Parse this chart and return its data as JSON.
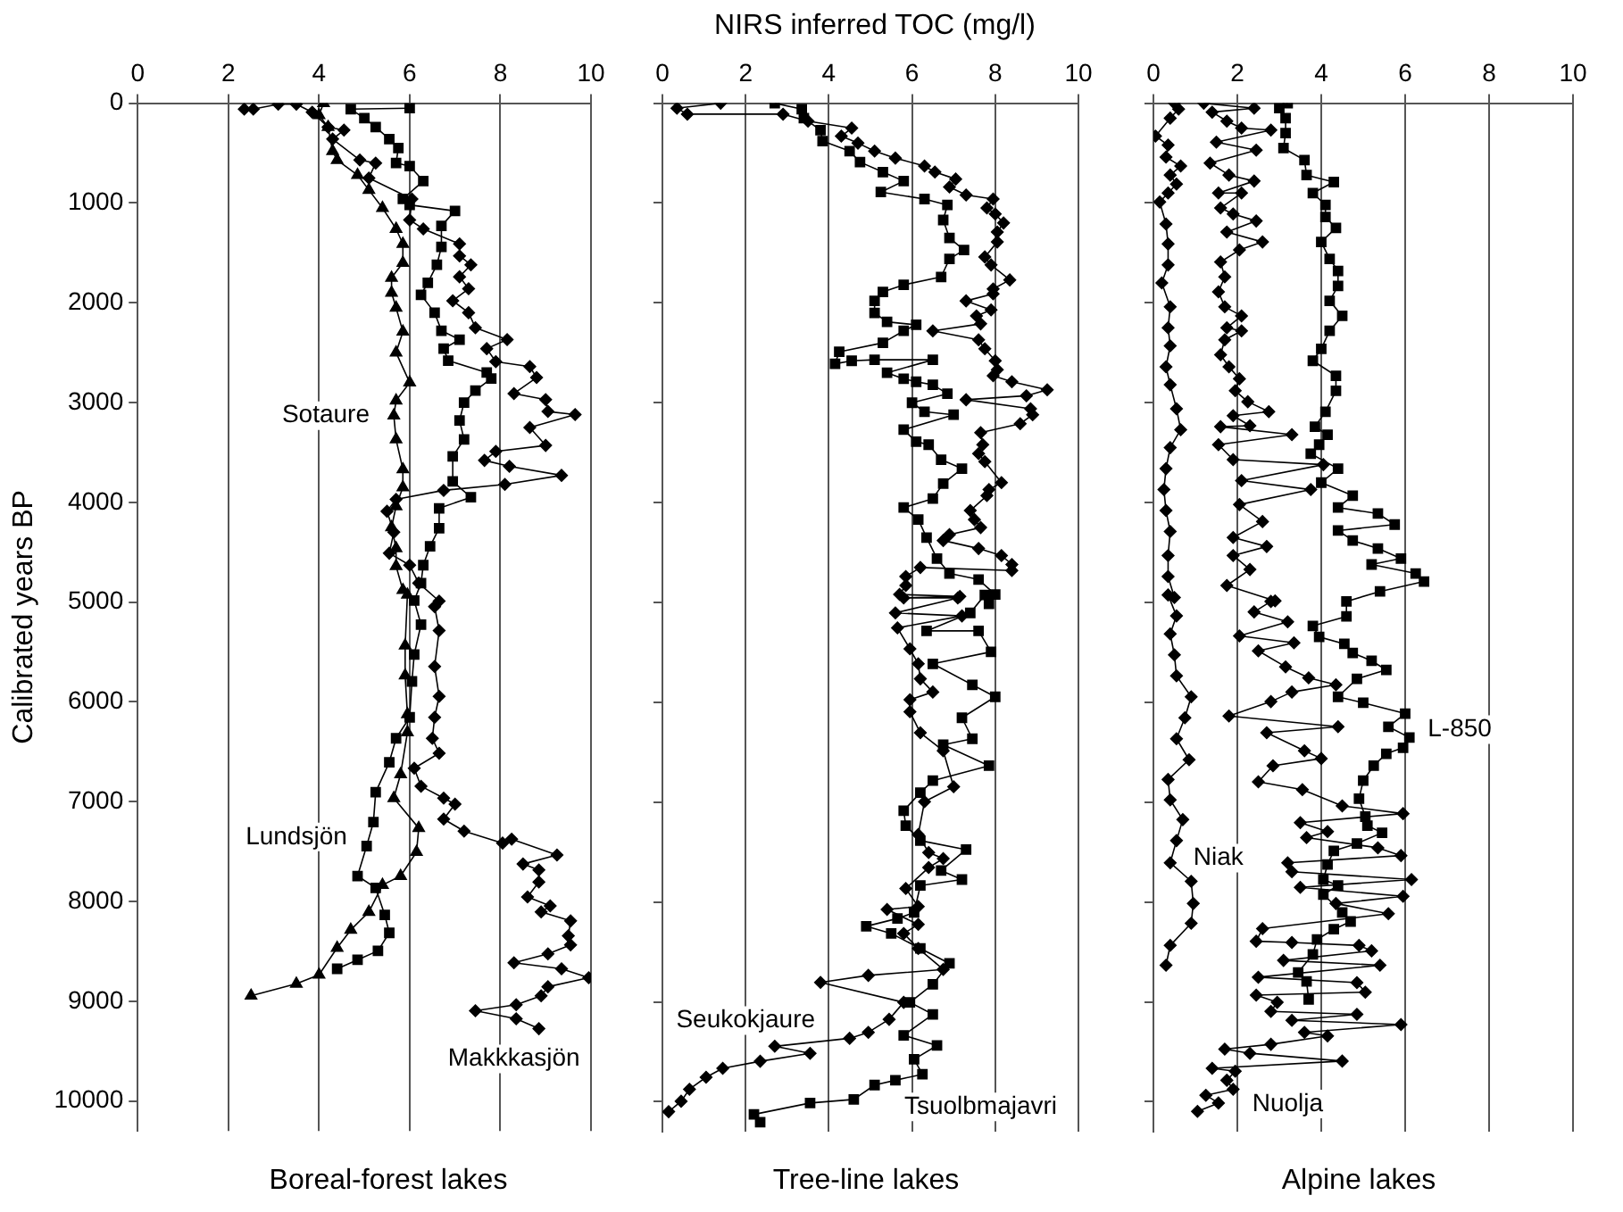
{
  "chart_data": [
    {
      "type": "line",
      "ylabel": "Calibrated years BP",
      "xlabel": "Boreal-forest lakes",
      "xlim": [
        0,
        10
      ],
      "xticks": [
        0,
        2,
        4,
        6,
        8,
        10
      ],
      "ylim": [
        10300,
        0
      ],
      "yticks": [
        0,
        1000,
        2000,
        3000,
        4000,
        5000,
        6000,
        7000,
        8000,
        9000,
        10000
      ],
      "grid": "x",
      "series": [
        {
          "name": "Sotaure",
          "color": "#000000",
          "marker": "triangle",
          "x": [
            4.1,
            4.0,
            4.2,
            4.3,
            4.4,
            4.85,
            5.1,
            5.4,
            5.7,
            5.85,
            5.85,
            5.6,
            5.6,
            5.7,
            5.85,
            5.7,
            6.0,
            5.7,
            5.65,
            5.7,
            5.85,
            5.85,
            5.7,
            5.6,
            5.7,
            5.7,
            5.85,
            5.95,
            5.9,
            5.9,
            5.95,
            5.95,
            5.8,
            5.65,
            6.2,
            6.15,
            5.8,
            5.4,
            5.1,
            4.7,
            4.4,
            4.0,
            3.5,
            2.5
          ],
          "values": [
            0,
            120,
            240,
            480,
            570,
            720,
            870,
            1050,
            1260,
            1410,
            1600,
            1750,
            1900,
            2050,
            2290,
            2500,
            2800,
            2980,
            3130,
            3370,
            3670,
            3850,
            4040,
            4250,
            4460,
            4640,
            4880,
            4925,
            5435,
            5735,
            6125,
            6305,
            6725,
            6965,
            7265,
            7505,
            7745,
            7835,
            8105,
            8285,
            8465,
            8735,
            8825,
            8945
          ]
        },
        {
          "name": "Lundsjön",
          "color": "#000000",
          "marker": "square",
          "x": [
            6.0,
            4.7,
            5.0,
            5.25,
            5.55,
            5.75,
            5.7,
            6.0,
            6.3,
            5.85,
            6.0,
            7.0,
            6.7,
            6.7,
            6.6,
            6.4,
            6.25,
            6.55,
            6.7,
            7.1,
            6.75,
            6.85,
            7.7,
            7.8,
            7.45,
            7.2,
            7.1,
            7.2,
            6.95,
            6.95,
            7.35,
            6.65,
            6.65,
            6.45,
            6.3,
            6.25,
            6.1,
            6.25,
            6.1,
            6.05,
            6.0,
            5.7,
            5.55,
            5.25,
            5.2,
            5.05,
            4.85,
            5.25,
            5.45,
            5.55,
            5.3,
            4.85,
            4.4
          ],
          "values": [
            50,
            60,
            150,
            240,
            360,
            450,
            600,
            630,
            780,
            960,
            1020,
            1080,
            1230,
            1440,
            1620,
            1800,
            1920,
            2100,
            2280,
            2370,
            2460,
            2580,
            2700,
            2760,
            2880,
            3000,
            3180,
            3370,
            3540,
            3790,
            3950,
            4060,
            4260,
            4440,
            4630,
            4810,
            4985,
            5225,
            5525,
            5795,
            6155,
            6365,
            6605,
            6905,
            7205,
            7445,
            7745,
            7865,
            8135,
            8315,
            8495,
            8585,
            8675
          ]
        },
        {
          "name": "Makkkasjön",
          "color": "#000000",
          "marker": "diamond",
          "x": [
            2.35,
            2.55,
            3.1,
            3.5,
            3.85,
            4.2,
            4.55,
            4.3,
            4.9,
            5.25,
            5.1,
            6.05,
            6.0,
            6.3,
            7.1,
            7.1,
            7.35,
            7.1,
            7.3,
            6.95,
            7.3,
            7.45,
            8.15,
            7.7,
            7.9,
            8.65,
            8.8,
            8.3,
            9.0,
            9.05,
            9.65,
            8.65,
            9.0,
            7.9,
            7.65,
            8.2,
            9.35,
            8.1,
            6.75,
            5.7,
            5.5,
            5.65,
            5.55,
            6.0,
            6.2,
            6.65,
            6.55,
            6.65,
            6.55,
            6.65,
            6.55,
            6.5,
            6.65,
            6.1,
            6.25,
            6.75,
            7.0,
            6.75,
            7.2,
            8.05,
            8.25,
            9.25,
            8.5,
            8.85,
            8.85,
            8.6,
            9.1,
            8.9,
            9.55,
            9.5,
            9.55,
            9.05,
            8.3,
            9.35,
            9.95,
            9.05,
            8.9,
            8.35,
            7.45,
            8.35,
            8.85
          ],
          "values": [
            60,
            60,
            10,
            10,
            90,
            240,
            270,
            360,
            570,
            600,
            750,
            960,
            1170,
            1260,
            1410,
            1530,
            1620,
            1740,
            1860,
            1980,
            2100,
            2250,
            2370,
            2460,
            2590,
            2640,
            2750,
            2910,
            2970,
            3090,
            3120,
            3250,
            3430,
            3490,
            3580,
            3640,
            3730,
            3820,
            3880,
            3970,
            4090,
            4300,
            4510,
            4630,
            4810,
            4990,
            5045,
            5285,
            5645,
            5945,
            6155,
            6365,
            6515,
            6665,
            6845,
            6965,
            7025,
            7175,
            7295,
            7415,
            7375,
            7535,
            7625,
            7685,
            7805,
            7955,
            8045,
            8105,
            8195,
            8345,
            8435,
            8525,
            8615,
            8675,
            8765,
            8855,
            8945,
            9035,
            9095,
            9175,
            9275
          ]
        }
      ]
    },
    {
      "type": "line",
      "title": "NIRS inferred TOC (mg/l)",
      "xlabel": "Tree-line lakes",
      "xlim": [
        0,
        10
      ],
      "xticks": [
        0,
        2,
        4,
        6,
        8,
        10
      ],
      "ylim": [
        10300,
        0
      ],
      "yticks": [
        0,
        1000,
        2000,
        3000,
        4000,
        5000,
        6000,
        7000,
        8000,
        9000,
        10000
      ],
      "grid": "x",
      "tick_labels": "x",
      "series": [
        {
          "name": "Seukokjaure",
          "color": "#000000",
          "marker": "diamond",
          "x": [
            1.4,
            0.35,
            0.6,
            2.9,
            3.5,
            4.55,
            4.3,
            4.7,
            5.1,
            5.6,
            6.3,
            6.55,
            7.05,
            6.9,
            7.3,
            7.95,
            7.8,
            8.0,
            8.2,
            8.05,
            8.05,
            7.75,
            7.9,
            8.35,
            7.95,
            7.95,
            7.3,
            7.9,
            7.55,
            7.65,
            6.5,
            7.6,
            7.75,
            8.0,
            8.05,
            7.95,
            8.4,
            9.25,
            8.75,
            7.3,
            8.85,
            8.9,
            8.6,
            7.65,
            7.7,
            7.6,
            7.75,
            8.15,
            7.85,
            7.8,
            7.4,
            7.5,
            7.65,
            6.9,
            6.75,
            7.6,
            8.15,
            8.4,
            8.4,
            6.2,
            5.85,
            5.85,
            5.7,
            7.15,
            5.8,
            7.1,
            5.6,
            7.2,
            5.65,
            5.95,
            6.15,
            6.2,
            6.5,
            5.95,
            5.95,
            6.2,
            6.75,
            7.0,
            6.3,
            6.15,
            6.4,
            6.75,
            6.4,
            5.85,
            6.15,
            5.4,
            6.15,
            5.8,
            6.15,
            6.75,
            4.95,
            3.8,
            5.8,
            5.45,
            4.95,
            4.5,
            2.7,
            3.55,
            2.35,
            1.45,
            1.05,
            0.65,
            0.45,
            0.15
          ],
          "values": [
            0,
            50,
            110,
            110,
            180,
            250,
            330,
            400,
            480,
            550,
            630,
            690,
            760,
            840,
            920,
            960,
            1050,
            1110,
            1200,
            1290,
            1390,
            1540,
            1620,
            1770,
            1860,
            1910,
            1980,
            2070,
            2130,
            2210,
            2280,
            2370,
            2460,
            2580,
            2670,
            2730,
            2790,
            2870,
            2930,
            2970,
            3060,
            3120,
            3210,
            3300,
            3420,
            3510,
            3590,
            3800,
            3870,
            3930,
            4080,
            4170,
            4250,
            4320,
            4380,
            4460,
            4530,
            4620,
            4680,
            4650,
            4740,
            4830,
            4920,
            4940,
            4955,
            4955,
            5105,
            5135,
            5255,
            5465,
            5615,
            5765,
            5897,
            5975,
            6095,
            6305,
            6485,
            6845,
            6995,
            7325,
            7505,
            7565,
            7655,
            7865,
            8045,
            8075,
            8225,
            8315,
            8465,
            8675,
            8735,
            8805,
            9005,
            9175,
            9305,
            9365,
            9445,
            9515,
            9595,
            9665,
            9755,
            9875,
            9995,
            10100
          ]
        },
        {
          "name": "Tsuolbmajavri",
          "color": "#000000",
          "marker": "square",
          "x": [
            2.7,
            3.35,
            3.4,
            3.8,
            3.85,
            4.5,
            4.75,
            5.3,
            5.8,
            5.25,
            6.3,
            6.85,
            6.75,
            6.9,
            7.25,
            6.9,
            6.7,
            5.8,
            5.3,
            5.1,
            5.1,
            5.4,
            6.1,
            5.8,
            5.3,
            4.25,
            4.15,
            4.55,
            5.1,
            6.5,
            5.4,
            5.8,
            6.1,
            6.5,
            6.85,
            6.0,
            6.3,
            7.0,
            5.8,
            6.1,
            6.4,
            6.7,
            7.2,
            6.75,
            6.5,
            5.8,
            6.15,
            6.35,
            6.6,
            6.9,
            7.6,
            8.0,
            7.85,
            7.75,
            7.4,
            6.35,
            7.6,
            7.9,
            6.5,
            7.45,
            8.0,
            7.2,
            7.45,
            6.75,
            7.85,
            6.5,
            6.2,
            5.8,
            5.85,
            6.2,
            7.3,
            6.7,
            7.2,
            6.2,
            6.05,
            5.65,
            4.9,
            5.5,
            6.2,
            6.9,
            6.5,
            5.95,
            6.5,
            5.8,
            6.6,
            6.05,
            6.25,
            5.6,
            5.1,
            4.6,
            3.55,
            2.2,
            2.35
          ],
          "values": [
            0,
            60,
            150,
            270,
            380,
            480,
            590,
            690,
            780,
            890,
            960,
            1020,
            1170,
            1350,
            1470,
            1560,
            1740,
            1820,
            1890,
            1980,
            2100,
            2190,
            2220,
            2280,
            2400,
            2490,
            2610,
            2580,
            2570,
            2570,
            2700,
            2760,
            2790,
            2820,
            2910,
            3000,
            3090,
            3120,
            3270,
            3390,
            3420,
            3570,
            3660,
            3810,
            3960,
            4050,
            4170,
            4350,
            4560,
            4710,
            4770,
            4920,
            5015,
            4925,
            5105,
            5285,
            5285,
            5495,
            5615,
            5825,
            5945,
            6155,
            6365,
            6425,
            6635,
            6785,
            6905,
            7085,
            7235,
            7385,
            7475,
            7685,
            7775,
            7835,
            8105,
            8165,
            8243,
            8315,
            8465,
            8615,
            8825,
            9005,
            9125,
            9335,
            9437,
            9575,
            9725,
            9785,
            9833,
            9977,
            10013,
            10127,
            10205
          ]
        }
      ]
    },
    {
      "type": "line",
      "xlabel": "Alpine lakes",
      "xlim": [
        0,
        10
      ],
      "xticks": [
        0,
        2,
        4,
        6,
        8,
        10
      ],
      "ylim": [
        10300,
        0
      ],
      "yticks": [
        0,
        1000,
        2000,
        3000,
        4000,
        5000,
        6000,
        7000,
        8000,
        9000,
        10000
      ],
      "grid": "x",
      "tick_labels": "x",
      "series": [
        {
          "name": "Niak",
          "color": "#000000",
          "marker": "diamond",
          "x": [
            0.5,
            0.6,
            0.4,
            0.05,
            0.35,
            0.3,
            0.65,
            0.4,
            0.55,
            0.35,
            0.15,
            0.3,
            0.35,
            0.35,
            0.2,
            0.4,
            0.35,
            0.4,
            0.3,
            0.4,
            0.55,
            0.65,
            0.4,
            0.3,
            0.25,
            0.3,
            0.4,
            0.35,
            0.35,
            0.5,
            0.35,
            0.55,
            0.4,
            0.5,
            0.55,
            0.9,
            0.75,
            0.55,
            0.85,
            0.35,
            0.4,
            0.7,
            0.55,
            0.4,
            0.9,
            0.95,
            0.9,
            0.4,
            0.3
          ],
          "values": [
            0,
            60,
            150,
            330,
            420,
            540,
            630,
            720,
            810,
            900,
            990,
            1210,
            1410,
            1620,
            1800,
            2040,
            2250,
            2430,
            2640,
            2820,
            3060,
            3270,
            3450,
            3660,
            3870,
            4080,
            4290,
            4530,
            4740,
            4950,
            4925,
            5135,
            5315,
            5525,
            5735,
            5945,
            6155,
            6365,
            6575,
            6773,
            6977,
            7175,
            7385,
            7607,
            7793,
            8015,
            8213,
            8435,
            8633
          ]
        },
        {
          "name": "L-850",
          "color": "#000000",
          "marker": "square",
          "x": [
            3.2,
            3.0,
            3.15,
            3.15,
            3.1,
            3.6,
            3.65,
            4.3,
            3.8,
            4.1,
            4.1,
            4.35,
            4.0,
            4.2,
            4.4,
            4.4,
            4.2,
            4.5,
            4.2,
            4.0,
            3.8,
            4.35,
            4.35,
            4.1,
            3.85,
            4.15,
            3.95,
            3.75,
            4.4,
            4.0,
            4.75,
            4.4,
            5.35,
            5.75,
            4.4,
            4.75,
            5.35,
            5.9,
            5.2,
            6.25,
            6.45,
            5.4,
            4.6,
            4.6,
            3.8,
            3.95,
            4.55,
            4.75,
            5.2,
            5.55,
            4.85,
            4.4,
            5.0,
            6.0,
            5.6,
            6.1,
            5.95,
            5.55,
            5.25,
            5.0,
            4.9,
            5.05,
            5.1,
            5.45,
            4.85,
            4.3,
            4.15,
            4.05,
            4.4,
            4.05,
            4.5,
            4.7,
            4.3,
            3.9,
            3.8,
            3.45,
            3.65,
            3.7
          ],
          "values": [
            0,
            50,
            150,
            300,
            450,
            570,
            720,
            790,
            900,
            1020,
            1140,
            1250,
            1390,
            1560,
            1680,
            1830,
            1980,
            2130,
            2280,
            2460,
            2580,
            2730,
            2880,
            3090,
            3240,
            3320,
            3420,
            3510,
            3660,
            3800,
            3930,
            4050,
            4110,
            4220,
            4280,
            4380,
            4460,
            4560,
            4620,
            4710,
            4790,
            4890,
            4990,
            5140,
            5235,
            5345,
            5415,
            5505,
            5585,
            5675,
            5765,
            5945,
            6005,
            6113,
            6245,
            6353,
            6455,
            6515,
            6635,
            6785,
            6965,
            7145,
            7235,
            7307,
            7415,
            7487,
            7625,
            7775,
            7835,
            7925,
            8105,
            8195,
            8273,
            8375,
            8525,
            8705,
            8795,
            8975
          ]
        },
        {
          "name": "Nuolja",
          "color": "#000000",
          "marker": "diamond",
          "x": [
            1.2,
            2.4,
            1.4,
            1.75,
            2.1,
            2.8,
            1.5,
            2.45,
            1.35,
            1.8,
            2.4,
            1.55,
            2.1,
            1.6,
            1.9,
            2.45,
            1.75,
            2.6,
            2.05,
            1.6,
            1.7,
            1.55,
            1.7,
            2.1,
            1.75,
            2.1,
            1.7,
            1.6,
            1.8,
            2.05,
            1.95,
            2.25,
            2.75,
            1.9,
            2.3,
            1.6,
            3.3,
            1.55,
            1.9,
            4.05,
            2.1,
            3.75,
            2.05,
            2.6,
            1.9,
            2.7,
            1.9,
            2.3,
            1.75,
            2.9,
            2.8,
            2.4,
            3.2,
            2.05,
            3.35,
            2.5,
            3.15,
            3.7,
            4.35,
            3.3,
            2.8,
            1.8,
            4.4,
            2.7,
            3.6,
            4.0,
            2.85,
            2.5,
            3.55,
            4.5,
            5.95,
            3.5,
            4.15,
            3.65,
            5.35,
            5.9,
            3.2,
            3.3,
            6.15,
            3.5,
            5.95,
            4.35,
            5.6,
            2.6,
            2.45,
            3.3,
            4.9,
            5.2,
            3.1,
            5.4,
            2.5,
            4.85,
            5.05,
            2.45,
            2.95,
            2.8,
            4.85,
            3.3,
            5.9,
            3.6,
            4.15,
            2.8,
            1.7,
            2.3,
            4.5,
            1.4,
            1.95,
            1.75,
            1.9,
            1.25,
            1.55,
            1.05
          ],
          "values": [
            0,
            50,
            90,
            180,
            250,
            270,
            390,
            470,
            600,
            720,
            780,
            900,
            900,
            1050,
            1110,
            1180,
            1290,
            1390,
            1470,
            1590,
            1740,
            1890,
            2040,
            2130,
            2250,
            2280,
            2370,
            2520,
            2640,
            2760,
            2880,
            2990,
            3090,
            3130,
            3230,
            3240,
            3320,
            3420,
            3570,
            3620,
            3780,
            3870,
            4020,
            4190,
            4350,
            4440,
            4530,
            4670,
            4830,
            4985,
            4990,
            5095,
            5195,
            5335,
            5405,
            5485,
            5645,
            5755,
            5825,
            5897,
            5993,
            6137,
            6245,
            6305,
            6485,
            6563,
            6635,
            6797,
            6875,
            7037,
            7115,
            7205,
            7295,
            7355,
            7457,
            7535,
            7607,
            7697,
            7775,
            7853,
            7943,
            8015,
            8117,
            8267,
            8393,
            8405,
            8435,
            8489,
            8585,
            8633,
            8753,
            8807,
            8903,
            8933,
            9005,
            9095,
            9125,
            9185,
            9227,
            9305,
            9341,
            9425,
            9473,
            9515,
            9593,
            9665,
            9695,
            9785,
            9875,
            9935,
            10013,
            10097
          ]
        }
      ]
    }
  ]
}
